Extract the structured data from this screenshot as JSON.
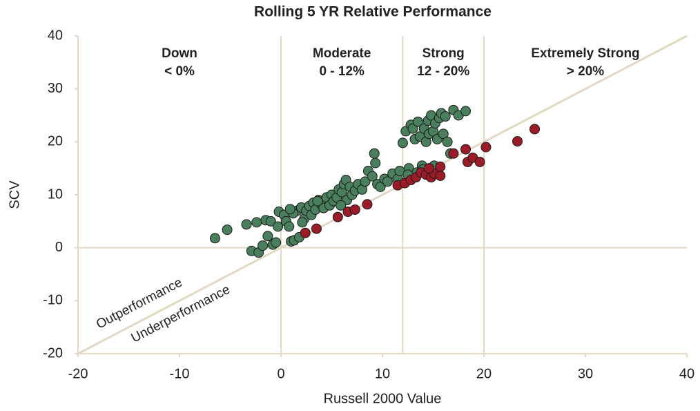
{
  "chart_data": {
    "type": "scatter",
    "title": "Rolling 5 YR Relative Performance",
    "x_label": "Russell 2000 Value",
    "y_label": "SCV",
    "xlim": [
      -20,
      40
    ],
    "ylim": [
      -20,
      40
    ],
    "xticks": [
      -20,
      -10,
      0,
      10,
      20,
      30,
      40
    ],
    "yticks": [
      -20,
      -10,
      0,
      10,
      20,
      30,
      40
    ],
    "vlines": [
      0,
      12,
      20
    ],
    "hlines": [
      0
    ],
    "reference_line": {
      "slope": 1,
      "intercept": 0
    },
    "line_color": "#e2d8c4",
    "regions": [
      {
        "title": "Down",
        "subtitle": "< 0%"
      },
      {
        "title": "Moderate",
        "subtitle": "0 - 12%"
      },
      {
        "title": "Strong",
        "subtitle": "12 - 20%"
      },
      {
        "title": "Extremely Strong",
        "subtitle": "> 20%"
      }
    ],
    "annotations": [
      "Outperformance",
      "Underperformance"
    ],
    "series": [
      {
        "color": "#4a7f5e",
        "x": [
          -6.5,
          -5.3,
          -3.4,
          -2.9,
          -2.2,
          -2.4,
          -1.8,
          -1.3,
          -1.5,
          -1.0,
          -0.8,
          -0.5,
          -0.3,
          -0.2,
          0.3,
          0.5,
          0.8,
          1.0,
          1.3,
          1.6,
          1.8,
          2.0,
          2.3,
          2.5,
          2.8,
          3.0,
          3.2,
          3.4,
          3.7,
          4.0,
          4.2,
          4.5,
          4.8,
          5.0,
          5.2,
          5.5,
          5.7,
          6.0,
          6.2,
          6.4,
          6.5,
          6.8,
          7.0,
          7.3,
          7.6,
          8.0,
          8.3,
          8.6,
          9.0,
          9.2,
          9.3,
          9.5,
          9.8,
          10.2,
          10.5,
          11.0,
          11.5,
          11.7,
          12.0,
          12.3,
          12.6,
          12.8,
          13.0,
          13.2,
          13.4,
          13.5,
          13.7,
          13.9,
          14.1,
          14.3,
          14.5,
          14.6,
          14.8,
          15.0,
          15.2,
          15.4,
          15.6,
          15.8,
          16.0,
          16.2,
          16.4,
          16.7,
          17.0,
          17.5,
          18.2,
          15.1,
          14.0,
          12.5,
          1.2,
          2.1,
          0.9,
          3.6,
          5.9
        ],
        "values": [
          1.8,
          3.4,
          4.4,
          -0.6,
          -0.9,
          4.8,
          0.4,
          2.2,
          5.2,
          5.0,
          0.6,
          1.0,
          4.0,
          6.8,
          6.2,
          5.0,
          4.0,
          1.2,
          1.4,
          7.0,
          2.0,
          7.6,
          5.5,
          7.0,
          7.9,
          6.2,
          8.5,
          7.2,
          9.0,
          8.2,
          7.5,
          9.5,
          8.0,
          10.0,
          8.8,
          9.5,
          11.0,
          10.5,
          12.0,
          12.8,
          9.0,
          11.5,
          10.0,
          10.8,
          12.0,
          11.0,
          12.5,
          14.5,
          13.5,
          17.8,
          16.0,
          12.0,
          11.5,
          13.0,
          12.5,
          14.0,
          13.0,
          14.5,
          19.8,
          22.0,
          15.0,
          23.2,
          22.5,
          20.5,
          14.2,
          23.8,
          21.0,
          15.5,
          22.5,
          20.0,
          24.0,
          21.5,
          25.0,
          22.0,
          23.5,
          20.5,
          24.5,
          25.4,
          21.5,
          24.8,
          20.0,
          17.8,
          26.0,
          25.0,
          25.8,
          15.5,
          14.8,
          13.8,
          6.5,
          4.8,
          7.3,
          8.8,
          8.0
        ]
      },
      {
        "color": "#9b1c28",
        "x": [
          2.4,
          3.5,
          5.6,
          6.6,
          7.3,
          8.5,
          11.5,
          12.2,
          12.8,
          13.3,
          13.8,
          14.3,
          14.8,
          15.1,
          15.7,
          15.7,
          17.0,
          18.2,
          18.4,
          18.9,
          19.6,
          20.2,
          23.3,
          25.0,
          14.6
        ],
        "values": [
          2.8,
          3.6,
          5.8,
          6.8,
          7.2,
          8.2,
          11.8,
          12.2,
          12.8,
          13.3,
          14.2,
          13.8,
          13.3,
          14.0,
          13.6,
          15.3,
          17.8,
          18.6,
          16.2,
          17.0,
          16.2,
          19.0,
          20.1,
          22.4,
          15.0
        ]
      }
    ]
  }
}
